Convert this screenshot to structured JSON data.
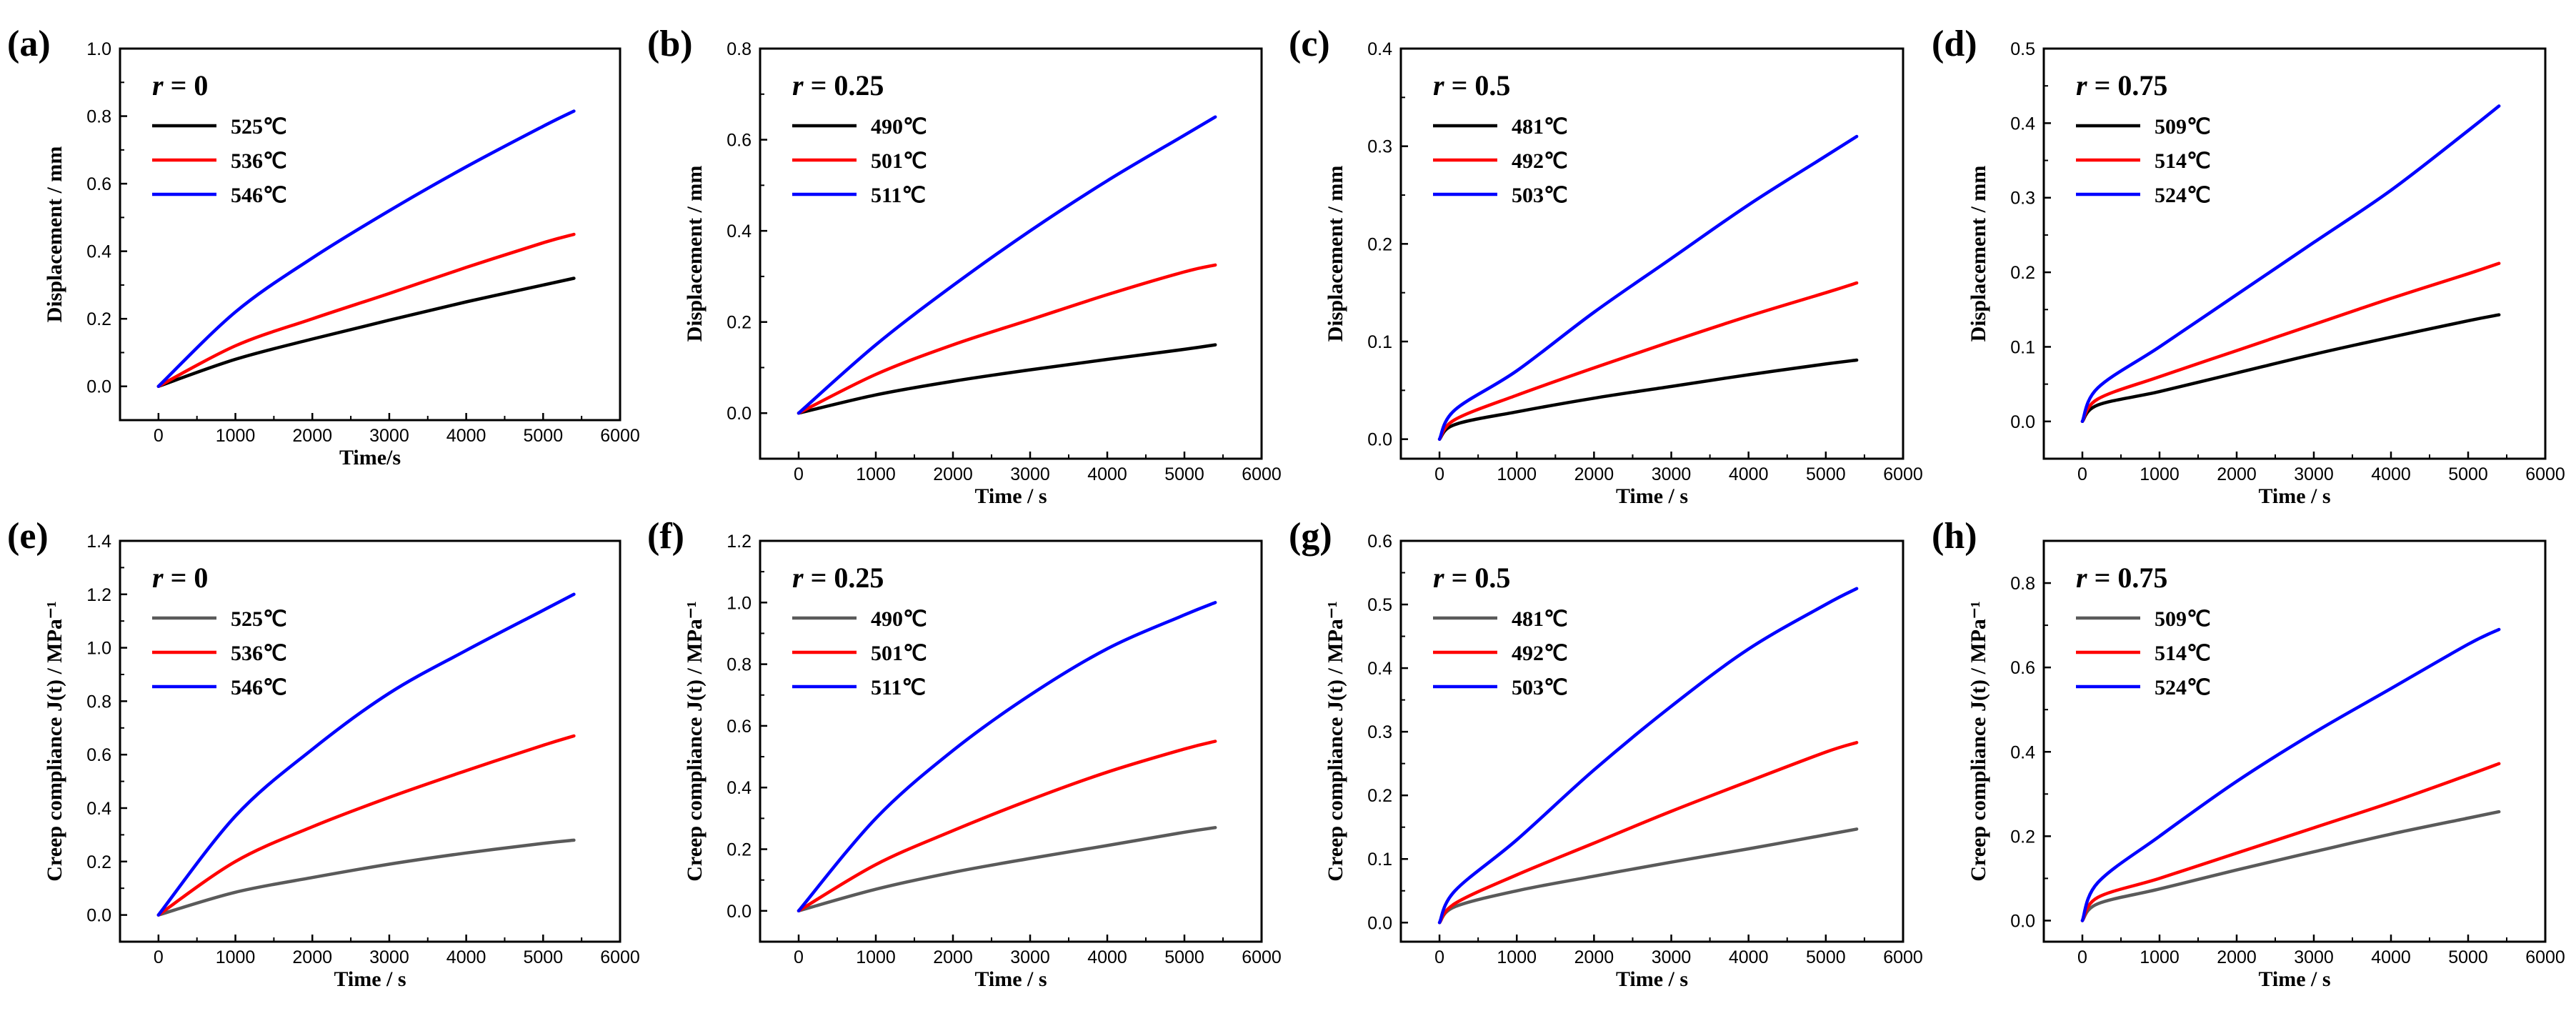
{
  "colors": {
    "black_series": "#000000",
    "gray_series": "#5a5a5a",
    "red_series": "#ff0000",
    "blue_series": "#0000ff"
  },
  "chart_data": [
    {
      "type": "line",
      "panel": "(a)",
      "r_label": "r = 0",
      "xlabel": "Time/s",
      "ylabel": "Displacement / mm",
      "xlim": [
        -500,
        6000
      ],
      "ylim": [
        -0.1,
        1.0
      ],
      "xticks": [
        0,
        1000,
        2000,
        3000,
        4000,
        5000,
        6000
      ],
      "yticks": [
        0.0,
        0.2,
        0.4,
        0.6,
        0.8,
        1.0
      ],
      "yticklabels": [
        "0.0",
        "0.2",
        "0.4",
        "0.6",
        "0.8",
        "1.0"
      ],
      "x": [
        0,
        1000,
        2000,
        3000,
        4000,
        5000,
        5400
      ],
      "series": [
        {
          "name": "525℃",
          "color": "black",
          "values": [
            0.0,
            0.08,
            0.14,
            0.196,
            0.25,
            0.3,
            0.32
          ]
        },
        {
          "name": "536℃",
          "color": "red",
          "values": [
            0.0,
            0.12,
            0.2,
            0.275,
            0.352,
            0.425,
            0.45
          ]
        },
        {
          "name": "546℃",
          "color": "blue",
          "values": [
            0.0,
            0.22,
            0.38,
            0.52,
            0.65,
            0.77,
            0.815
          ]
        }
      ]
    },
    {
      "type": "line",
      "panel": "(b)",
      "r_label": "r = 0.25",
      "xlabel": "Time / s",
      "ylabel": "Displacement / mm",
      "xlim": [
        -500,
        6000
      ],
      "ylim": [
        -0.1,
        0.8
      ],
      "xticks": [
        0,
        1000,
        2000,
        3000,
        4000,
        5000,
        6000
      ],
      "yticks": [
        0.0,
        0.2,
        0.4,
        0.6,
        0.8
      ],
      "yticklabels": [
        "0.0",
        "0.2",
        "0.4",
        "0.6",
        "0.8"
      ],
      "x": [
        0,
        1000,
        2000,
        3000,
        4000,
        5000,
        5400
      ],
      "series": [
        {
          "name": "490℃",
          "color": "black",
          "values": [
            0.0,
            0.04,
            0.07,
            0.095,
            0.118,
            0.14,
            0.15
          ]
        },
        {
          "name": "501℃",
          "color": "red",
          "values": [
            0.0,
            0.085,
            0.15,
            0.205,
            0.26,
            0.31,
            0.325
          ]
        },
        {
          "name": "511℃",
          "color": "blue",
          "values": [
            0.0,
            0.15,
            0.28,
            0.4,
            0.51,
            0.61,
            0.65
          ]
        }
      ]
    },
    {
      "type": "line",
      "panel": "(c)",
      "r_label": "r = 0.5",
      "xlabel": "Time / s",
      "ylabel": "Displacement / mm",
      "xlim": [
        -500,
        6000
      ],
      "ylim": [
        -0.02,
        0.4
      ],
      "xticks": [
        0,
        1000,
        2000,
        3000,
        4000,
        5000,
        6000
      ],
      "yticks": [
        0.0,
        0.1,
        0.2,
        0.3,
        0.4
      ],
      "yticklabels": [
        "0.0",
        "0.1",
        "0.2",
        "0.3",
        "0.4"
      ],
      "x": [
        0,
        200,
        1000,
        2000,
        3000,
        4000,
        5000,
        5400
      ],
      "series": [
        {
          "name": "481℃",
          "color": "black",
          "values": [
            0.0,
            0.015,
            0.028,
            0.042,
            0.054,
            0.066,
            0.077,
            0.081
          ]
        },
        {
          "name": "492℃",
          "color": "red",
          "values": [
            0.0,
            0.02,
            0.045,
            0.073,
            0.1,
            0.126,
            0.15,
            0.16
          ]
        },
        {
          "name": "503℃",
          "color": "blue",
          "values": [
            0.0,
            0.03,
            0.07,
            0.13,
            0.185,
            0.24,
            0.29,
            0.31
          ]
        }
      ]
    },
    {
      "type": "line",
      "panel": "(d)",
      "r_label": "r = 0.75",
      "xlabel": "Time / s",
      "ylabel": "Displacement / mm",
      "xlim": [
        -500,
        6000
      ],
      "ylim": [
        -0.05,
        0.5
      ],
      "xticks": [
        0,
        1000,
        2000,
        3000,
        4000,
        5000,
        6000
      ],
      "yticks": [
        0.0,
        0.1,
        0.2,
        0.3,
        0.4,
        0.5
      ],
      "yticklabels": [
        "0.0",
        "0.1",
        "0.2",
        "0.3",
        "0.4",
        "0.5"
      ],
      "x": [
        0,
        200,
        1000,
        2000,
        3000,
        4000,
        5000,
        5400
      ],
      "series": [
        {
          "name": "509℃",
          "color": "black",
          "values": [
            0.0,
            0.022,
            0.04,
            0.065,
            0.09,
            0.113,
            0.135,
            0.143
          ]
        },
        {
          "name": "514℃",
          "color": "red",
          "values": [
            0.0,
            0.03,
            0.06,
            0.095,
            0.13,
            0.165,
            0.198,
            0.212
          ]
        },
        {
          "name": "524℃",
          "color": "blue",
          "values": [
            0.0,
            0.045,
            0.1,
            0.17,
            0.24,
            0.31,
            0.39,
            0.423
          ]
        }
      ]
    },
    {
      "type": "line",
      "panel": "(e)",
      "r_label": "r = 0",
      "xlabel": "Time / s",
      "ylabel": "Creep compliance J(t) / MPa⁻¹",
      "xlim": [
        -500,
        6000
      ],
      "ylim": [
        -0.1,
        1.4
      ],
      "xticks": [
        0,
        1000,
        2000,
        3000,
        4000,
        5000,
        6000
      ],
      "yticks": [
        0.0,
        0.2,
        0.4,
        0.6,
        0.8,
        1.0,
        1.2,
        1.4
      ],
      "yticklabels": [
        "0.0",
        "0.2",
        "0.4",
        "0.6",
        "0.8",
        "1.0",
        "1.2",
        "1.4"
      ],
      "x": [
        0,
        1000,
        2000,
        3000,
        4000,
        5000,
        5400
      ],
      "series": [
        {
          "name": "525℃",
          "color": "gray",
          "values": [
            0.0,
            0.085,
            0.14,
            0.19,
            0.232,
            0.268,
            0.28
          ]
        },
        {
          "name": "536℃",
          "color": "red",
          "values": [
            0.0,
            0.2,
            0.33,
            0.44,
            0.54,
            0.635,
            0.67
          ]
        },
        {
          "name": "546℃",
          "color": "blue",
          "values": [
            0.0,
            0.37,
            0.62,
            0.83,
            0.99,
            1.14,
            1.2
          ]
        }
      ]
    },
    {
      "type": "line",
      "panel": "(f)",
      "r_label": "r = 0.25",
      "xlabel": "Time / s",
      "ylabel": "Creep compliance J(t) / MPa⁻¹",
      "xlim": [
        -500,
        6000
      ],
      "ylim": [
        -0.1,
        1.2
      ],
      "xticks": [
        0,
        1000,
        2000,
        3000,
        4000,
        5000,
        6000
      ],
      "yticks": [
        0.0,
        0.2,
        0.4,
        0.6,
        0.8,
        1.0,
        1.2
      ],
      "yticklabels": [
        "0.0",
        "0.2",
        "0.4",
        "0.6",
        "0.8",
        "1.0",
        "1.2"
      ],
      "x": [
        0,
        1000,
        2000,
        3000,
        4000,
        5000,
        5400
      ],
      "series": [
        {
          "name": "490℃",
          "color": "gray",
          "values": [
            0.0,
            0.07,
            0.125,
            0.17,
            0.212,
            0.255,
            0.27
          ]
        },
        {
          "name": "501℃",
          "color": "red",
          "values": [
            0.0,
            0.15,
            0.26,
            0.36,
            0.45,
            0.525,
            0.55
          ]
        },
        {
          "name": "511℃",
          "color": "blue",
          "values": [
            0.0,
            0.3,
            0.52,
            0.7,
            0.85,
            0.96,
            1.0
          ]
        }
      ]
    },
    {
      "type": "line",
      "panel": "(g)",
      "r_label": "r = 0.5",
      "xlabel": "Time / s",
      "ylabel": "Creep compliance J(t) / MPa⁻¹",
      "xlim": [
        -500,
        6000
      ],
      "ylim": [
        -0.03,
        0.6
      ],
      "xticks": [
        0,
        1000,
        2000,
        3000,
        4000,
        5000,
        6000
      ],
      "yticks": [
        0.0,
        0.1,
        0.2,
        0.3,
        0.4,
        0.5,
        0.6
      ],
      "yticklabels": [
        "0.0",
        "0.1",
        "0.2",
        "0.3",
        "0.4",
        "0.5",
        "0.6"
      ],
      "x": [
        0,
        200,
        1000,
        2000,
        3000,
        4000,
        5000,
        5400
      ],
      "series": [
        {
          "name": "481℃",
          "color": "gray",
          "values": [
            0.0,
            0.025,
            0.05,
            0.073,
            0.095,
            0.116,
            0.138,
            0.147
          ]
        },
        {
          "name": "492℃",
          "color": "red",
          "values": [
            0.0,
            0.03,
            0.075,
            0.125,
            0.175,
            0.222,
            0.268,
            0.283
          ]
        },
        {
          "name": "503℃",
          "color": "blue",
          "values": [
            0.0,
            0.05,
            0.13,
            0.24,
            0.34,
            0.43,
            0.5,
            0.525
          ]
        }
      ]
    },
    {
      "type": "line",
      "panel": "(h)",
      "r_label": "r = 0.75",
      "xlabel": "Time / s",
      "ylabel": "Creep compliance J(t) / MPa⁻¹",
      "xlim": [
        -500,
        6000
      ],
      "ylim": [
        -0.05,
        0.9
      ],
      "xticks": [
        0,
        1000,
        2000,
        3000,
        4000,
        5000,
        6000
      ],
      "yticks": [
        0.0,
        0.2,
        0.4,
        0.6,
        0.8
      ],
      "yticklabels": [
        "0.0",
        "0.2",
        "0.4",
        "0.6",
        "0.8"
      ],
      "x": [
        0,
        200,
        1000,
        2000,
        3000,
        4000,
        5000,
        5400
      ],
      "series": [
        {
          "name": "509℃",
          "color": "gray",
          "values": [
            0.0,
            0.04,
            0.075,
            0.12,
            0.163,
            0.205,
            0.243,
            0.258
          ]
        },
        {
          "name": "514℃",
          "color": "red",
          "values": [
            0.0,
            0.055,
            0.1,
            0.16,
            0.22,
            0.28,
            0.345,
            0.372
          ]
        },
        {
          "name": "524℃",
          "color": "blue",
          "values": [
            0.0,
            0.09,
            0.2,
            0.33,
            0.445,
            0.55,
            0.655,
            0.69
          ]
        }
      ]
    }
  ]
}
